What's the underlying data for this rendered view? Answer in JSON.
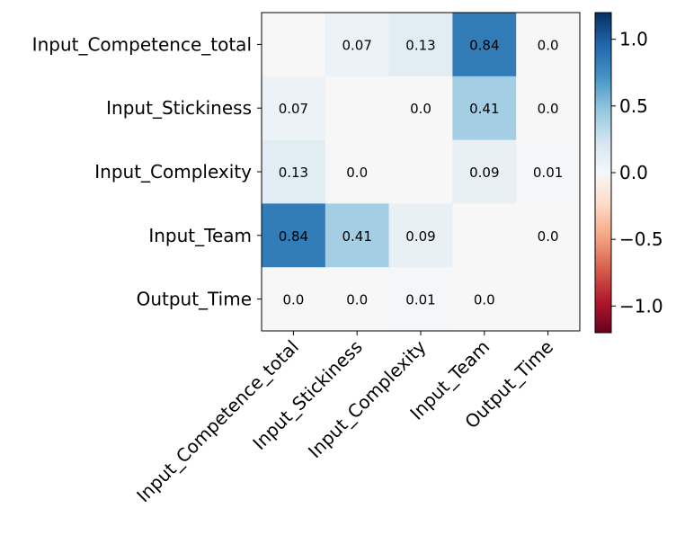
{
  "chart_data": {
    "type": "heatmap",
    "title": "",
    "xlabel": "",
    "ylabel": "",
    "rows": [
      "Input_Competence_total",
      "Input_Stickiness",
      "Input_Complexity",
      "Input_Team",
      "Output_Time"
    ],
    "columns": [
      "Input_Competence_total",
      "Input_Stickiness",
      "Input_Complexity",
      "Input_Team",
      "Output_Time"
    ],
    "values": [
      [
        null,
        0.07,
        0.13,
        0.84,
        0.0
      ],
      [
        0.07,
        null,
        0.0,
        0.41,
        0.0
      ],
      [
        0.13,
        0.0,
        null,
        0.09,
        0.01
      ],
      [
        0.84,
        0.41,
        0.09,
        null,
        0.0
      ],
      [
        0.0,
        0.0,
        0.01,
        0.0,
        null
      ]
    ],
    "cell_labels": [
      [
        "",
        "0.07",
        "0.13",
        "0.84",
        "0.0"
      ],
      [
        "0.07",
        "",
        "0.0",
        "0.41",
        "0.0"
      ],
      [
        "0.13",
        "0.0",
        "",
        "0.09",
        "0.01"
      ],
      [
        "0.84",
        "0.41",
        "0.09",
        "",
        "0.0"
      ],
      [
        "0.0",
        "0.0",
        "0.01",
        "0.0",
        ""
      ]
    ],
    "colormap": "RdBu",
    "vmin": -1.2,
    "vmax": 1.2,
    "colorbar": {
      "ticks": [
        1.0,
        0.5,
        0.0,
        -0.5,
        -1.0
      ],
      "tick_labels": [
        "1.0",
        "0.5",
        "0.0",
        "−0.5",
        "−1.0"
      ]
    },
    "grid": false
  }
}
